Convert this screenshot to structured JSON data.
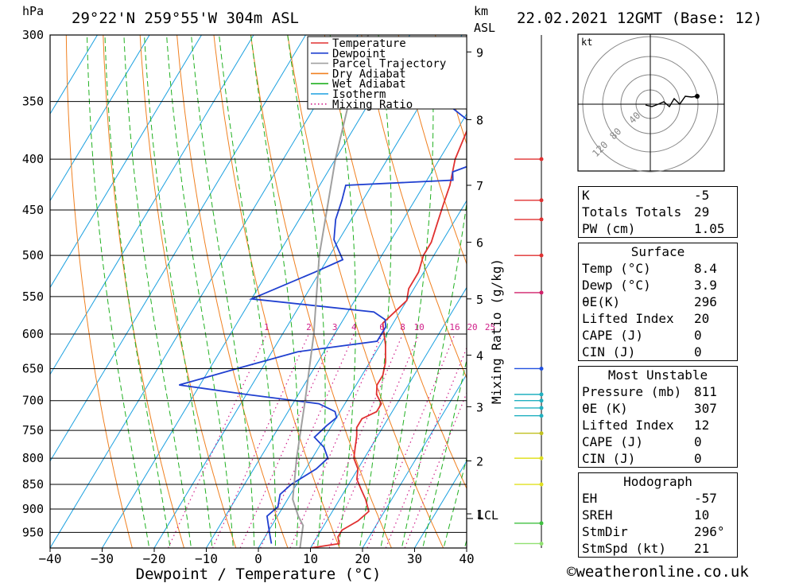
{
  "header": {
    "units_left": "hPa",
    "location": "29°22'N  259°55'W  304m  ASL",
    "units_km": "km",
    "units_asl": "ASL",
    "datetime": "22.02.2021  12GMT  (Base: 12)"
  },
  "chart_data": {
    "type": "line",
    "xlabel": "Dewpoint / Temperature (°C)",
    "ylabel": "hPa",
    "xlim": [
      -40,
      40
    ],
    "ylim": [
      985,
      300
    ],
    "x_ticks": [
      -40,
      -30,
      -20,
      -10,
      0,
      10,
      20,
      30,
      40
    ],
    "x_tick_labels": [
      "−40",
      "−30",
      "−20",
      "−10",
      "0",
      "10",
      "20",
      "30",
      "40"
    ],
    "pressure_ticks": [
      300,
      350,
      400,
      450,
      500,
      550,
      600,
      650,
      700,
      750,
      800,
      850,
      900,
      950
    ],
    "km_ticks": [
      {
        "label": "9",
        "p": 312
      },
      {
        "label": "8",
        "p": 365
      },
      {
        "label": "7",
        "p": 425
      },
      {
        "label": "6",
        "p": 485
      },
      {
        "label": "5",
        "p": 553
      },
      {
        "label": "4",
        "p": 630
      },
      {
        "label": "3",
        "p": 710
      },
      {
        "label": "2",
        "p": 805
      },
      {
        "label": "1",
        "p": 910
      }
    ],
    "lcl_label": "LCL",
    "lcl_pressure": 920,
    "mixing_ratio_axis_label": "Mixing Ratio (g/kg)",
    "mixing_ratio_labels": [
      "1",
      "2",
      "3",
      "4",
      "6",
      "8",
      "10",
      "16",
      "20",
      "25"
    ],
    "legend": [
      {
        "name": "Temperature",
        "color": "#e03030",
        "style": "solid"
      },
      {
        "name": "Dewpoint",
        "color": "#2040d0",
        "style": "solid"
      },
      {
        "name": "Parcel Trajectory",
        "color": "#a0a0a0",
        "style": "solid"
      },
      {
        "name": "Dry Adiabat",
        "color": "#f08020",
        "style": "solid"
      },
      {
        "name": "Wet Adiabat",
        "color": "#20b020",
        "style": "solid"
      },
      {
        "name": "Isotherm",
        "color": "#1aa0e0",
        "style": "solid"
      },
      {
        "name": "Mixing Ratio",
        "color": "#d0208a",
        "style": "dotted"
      }
    ],
    "series": [
      {
        "name": "Temperature",
        "color": "#e03030",
        "points": [
          [
            10,
            985
          ],
          [
            15,
            975
          ],
          [
            14,
            960
          ],
          [
            14,
            945
          ],
          [
            16,
            925
          ],
          [
            17,
            905
          ],
          [
            15,
            880
          ],
          [
            13,
            860
          ],
          [
            11,
            840
          ],
          [
            10,
            820
          ],
          [
            8,
            800
          ],
          [
            7,
            780
          ],
          [
            6,
            760
          ],
          [
            5,
            745
          ],
          [
            5,
            730
          ],
          [
            7,
            718
          ],
          [
            7,
            705
          ],
          [
            5,
            690
          ],
          [
            4,
            675
          ],
          [
            4,
            660
          ],
          [
            3,
            640
          ],
          [
            1,
            615
          ],
          [
            -1,
            595
          ],
          [
            -2,
            585
          ],
          [
            -1,
            570
          ],
          [
            0,
            555
          ],
          [
            -1,
            540
          ],
          [
            -1,
            520
          ],
          [
            -2,
            500
          ],
          [
            -2,
            485
          ],
          [
            -3,
            465
          ],
          [
            -4,
            445
          ],
          [
            -5,
            425
          ],
          [
            -7,
            400
          ],
          [
            -8,
            375
          ],
          [
            -9,
            350
          ],
          [
            -10,
            330
          ],
          [
            -12,
            310
          ],
          [
            -13,
            300
          ]
        ]
      },
      {
        "name": "Dewpoint",
        "color": "#2040d0",
        "points": [
          [
            2,
            975
          ],
          [
            1,
            960
          ],
          [
            0,
            945
          ],
          [
            -1,
            930
          ],
          [
            -2,
            915
          ],
          [
            -1,
            895
          ],
          [
            -2,
            870
          ],
          [
            -1,
            850
          ],
          [
            2,
            820
          ],
          [
            3,
            800
          ],
          [
            1,
            780
          ],
          [
            -2,
            762
          ],
          [
            -1,
            742
          ],
          [
            0,
            728
          ],
          [
            -1,
            718
          ],
          [
            -5,
            705
          ],
          [
            -20,
            690
          ],
          [
            -34,
            675
          ],
          [
            -24,
            648
          ],
          [
            -15,
            625
          ],
          [
            -1,
            610
          ],
          [
            -1,
            590
          ],
          [
            -2,
            580
          ],
          [
            -5,
            570
          ],
          [
            -30,
            553
          ],
          [
            -21,
            520
          ],
          [
            -17,
            505
          ],
          [
            -21,
            482
          ],
          [
            -23,
            460
          ],
          [
            -24,
            440
          ],
          [
            -25,
            425
          ],
          [
            -5,
            420
          ],
          [
            -6,
            412
          ],
          [
            -3,
            405
          ],
          [
            -1,
            385
          ],
          [
            -18,
            345
          ],
          [
            -12,
            320
          ],
          [
            -6,
            315
          ],
          [
            -10,
            305
          ],
          [
            -12,
            300
          ]
        ]
      },
      {
        "name": "Parcel Trajectory",
        "color": "#a0a0a0",
        "points": [
          [
            8,
            985
          ],
          [
            7,
            960
          ],
          [
            6,
            935
          ],
          [
            4,
            915
          ],
          [
            1,
            880
          ],
          [
            -3,
            800
          ],
          [
            -8,
            700
          ],
          [
            -14,
            600
          ],
          [
            -22,
            500
          ],
          [
            -30,
            400
          ],
          [
            -34,
            350
          ],
          [
            -38,
            300
          ]
        ]
      }
    ],
    "wind_barbs": [
      {
        "p": 400,
        "color": "#e03030"
      },
      {
        "p": 440,
        "color": "#e03030"
      },
      {
        "p": 460,
        "color": "#e03030"
      },
      {
        "p": 500,
        "color": "#e03030"
      },
      {
        "p": 545,
        "color": "#d0206a"
      },
      {
        "p": 650,
        "color": "#2050e0"
      },
      {
        "p": 690,
        "color": "#20b0c0"
      },
      {
        "p": 700,
        "color": "#20b0c0"
      },
      {
        "p": 712,
        "color": "#20b0c0"
      },
      {
        "p": 725,
        "color": "#20b0c0"
      },
      {
        "p": 755,
        "color": "#c0c020"
      },
      {
        "p": 800,
        "color": "#e0e020"
      },
      {
        "p": 850,
        "color": "#e0e020"
      },
      {
        "p": 930,
        "color": "#40c040"
      },
      {
        "p": 975,
        "color": "#90e070"
      }
    ],
    "hodograph": {
      "unit_label": "kt",
      "ring_labels": [
        "40",
        "80",
        "120"
      ]
    }
  },
  "stats": {
    "indices": [
      {
        "label": "K",
        "value": "-5"
      },
      {
        "label": "Totals Totals",
        "value": "29"
      },
      {
        "label": "PW (cm)",
        "value": "1.05"
      }
    ],
    "surface": {
      "title": "Surface",
      "rows": [
        {
          "label": "Temp (°C)",
          "value": "8.4"
        },
        {
          "label": "Dewp (°C)",
          "value": "3.9"
        },
        {
          "label": "θE(K)",
          "value": "296"
        },
        {
          "label": "Lifted Index",
          "value": "20"
        },
        {
          "label": "CAPE (J)",
          "value": "0"
        },
        {
          "label": "CIN (J)",
          "value": "0"
        }
      ]
    },
    "most_unstable": {
      "title": "Most Unstable",
      "rows": [
        {
          "label": "Pressure (mb)",
          "value": "811"
        },
        {
          "label": "θE (K)",
          "value": "307"
        },
        {
          "label": "Lifted Index",
          "value": "12"
        },
        {
          "label": "CAPE (J)",
          "value": "0"
        },
        {
          "label": "CIN (J)",
          "value": "0"
        }
      ]
    },
    "hodograph": {
      "title": "Hodograph",
      "rows": [
        {
          "label": "EH",
          "value": "-57"
        },
        {
          "label": "SREH",
          "value": "10"
        },
        {
          "label": "StmDir",
          "value": "296°"
        },
        {
          "label": "StmSpd (kt)",
          "value": "21"
        }
      ]
    }
  },
  "credit": "©weatheronline.co.uk"
}
